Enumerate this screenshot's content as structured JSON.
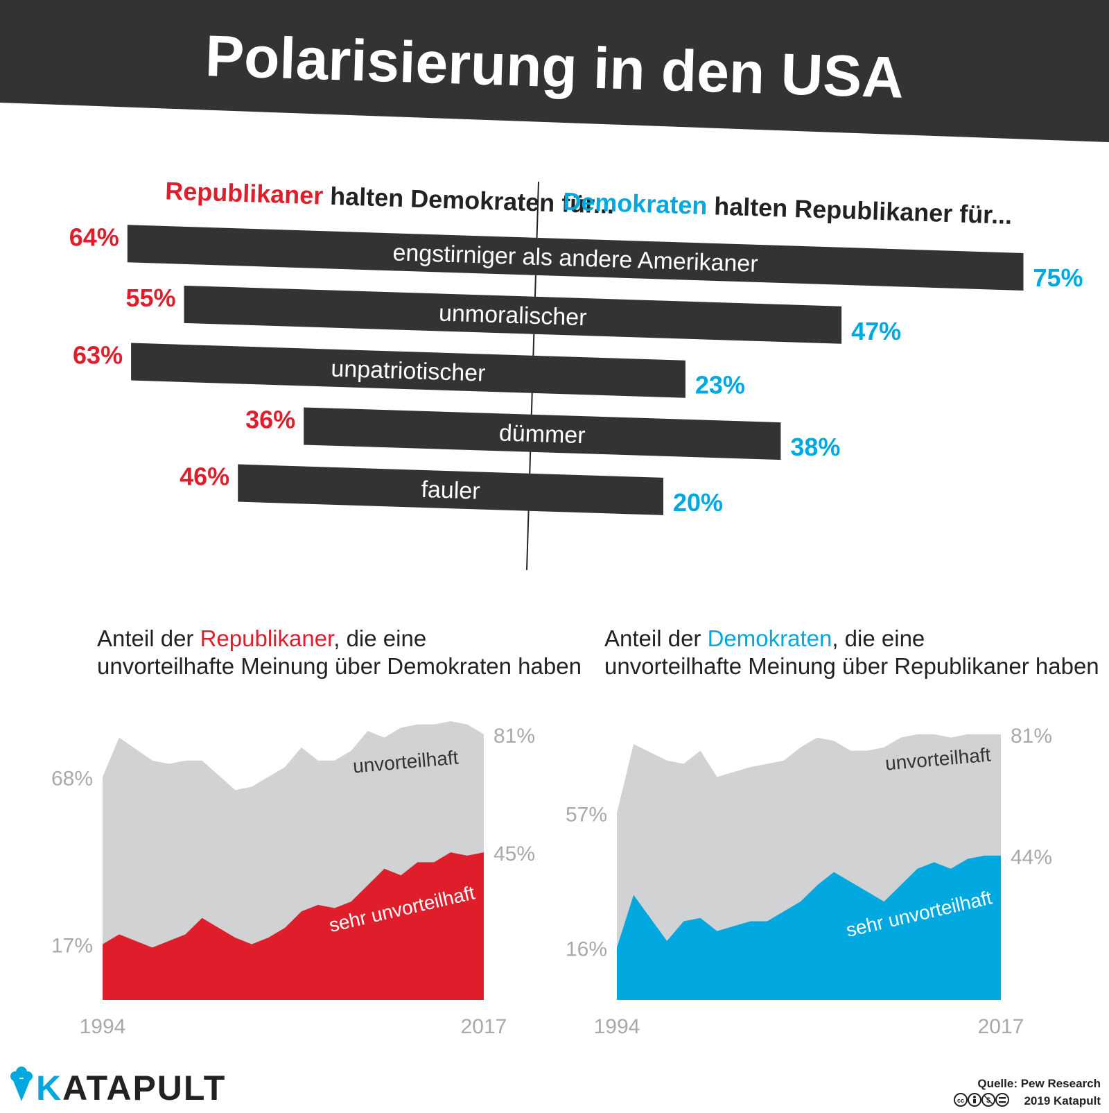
{
  "title": "Polarisierung in den USA",
  "colors": {
    "header_bg": "#333333",
    "bar": "#333333",
    "republican": "#e01e2b",
    "democrat": "#00a8e0",
    "area_grey": "#d1d2d4",
    "axis_text": "#a7a9ac",
    "text_dark": "#222222",
    "white": "#ffffff"
  },
  "comparison": {
    "left_header": {
      "party": "Republikaner",
      "rest": " halten Demokraten für..."
    },
    "right_header": {
      "party": "Demokraten",
      "rest": " halten Republikaner für..."
    }
  },
  "chart_data": [
    {
      "type": "bar",
      "orientation": "diverging-horizontal",
      "categories": [
        "engstirniger als andere Amerikaner",
        "unmoralischer",
        "unpatriotischer",
        "dümmer",
        "fauler"
      ],
      "series": [
        {
          "name": "Republikaner halten Demokraten für...",
          "values": [
            64,
            55,
            63,
            36,
            46
          ],
          "labels": [
            "64%",
            "55%",
            "63%",
            "36%",
            "46%"
          ]
        },
        {
          "name": "Demokraten halten Republikaner für...",
          "values": [
            75,
            47,
            23,
            38,
            20
          ],
          "labels": [
            "75%",
            "47%",
            "23%",
            "38%",
            "20%"
          ]
        }
      ],
      "unit": "%"
    },
    {
      "type": "area",
      "title_parts": [
        "Anteil der ",
        "Republikaner",
        ", die eine",
        "unvorteilhafte Meinung über Demokraten haben"
      ],
      "x": [
        1994,
        1995,
        1997,
        1998,
        1999,
        2000,
        2002,
        2003,
        2004,
        2005,
        2006,
        2007,
        2008,
        2009,
        2010,
        2011,
        2012,
        2013,
        2014,
        2015,
        2016,
        2017
      ],
      "x_tick_labels": [
        "1994",
        "2017"
      ],
      "series": [
        {
          "name": "unvorteilhaft",
          "values": [
            68,
            80,
            73,
            72,
            73,
            73,
            64,
            65,
            68,
            71,
            77,
            73,
            73,
            76,
            82,
            80,
            83,
            84,
            84,
            85,
            84,
            81
          ],
          "start_label": "68%",
          "end_label": "81%"
        },
        {
          "name": "sehr unvorteilhaft",
          "values": [
            17,
            20,
            16,
            18,
            20,
            25,
            19,
            17,
            19,
            22,
            27,
            29,
            28,
            30,
            35,
            40,
            38,
            42,
            42,
            45,
            44,
            45
          ],
          "start_label": "17%",
          "end_label": "45%"
        }
      ],
      "ylim": [
        0,
        100
      ]
    },
    {
      "type": "area",
      "title_parts": [
        "Anteil der ",
        "Demokraten",
        ", die eine",
        "unvorteilhafte Meinung über Republikaner haben"
      ],
      "x": [
        1994,
        1995,
        1997,
        1998,
        1999,
        2000,
        2002,
        2003,
        2004,
        2005,
        2006,
        2007,
        2008,
        2009,
        2010,
        2011,
        2012,
        2013,
        2014,
        2015,
        2016,
        2017
      ],
      "x_tick_labels": [
        "1994",
        "2017"
      ],
      "series": [
        {
          "name": "unvorteilhaft",
          "values": [
            57,
            78,
            73,
            72,
            76,
            68,
            71,
            72,
            73,
            77,
            80,
            79,
            76,
            76,
            77,
            80,
            81,
            81,
            80,
            81,
            81,
            81
          ],
          "start_label": "57%",
          "end_label": "81%"
        },
        {
          "name": "sehr unvorteilhaft",
          "values": [
            16,
            32,
            18,
            24,
            25,
            21,
            24,
            24,
            27,
            30,
            35,
            39,
            36,
            33,
            30,
            35,
            40,
            42,
            40,
            43,
            44,
            44
          ],
          "start_label": "16%",
          "end_label": "44%"
        }
      ],
      "ylim": [
        0,
        100
      ]
    }
  ],
  "footer": {
    "brand": "KATAPULT",
    "brand_k": "K",
    "brand_rest": "ATAPULT",
    "source": "Quelle: Pew Research",
    "license_icons": [
      "cc-icon",
      "by-icon",
      "nc-icon",
      "nd-icon"
    ],
    "copyright": "2019 Katapult"
  }
}
